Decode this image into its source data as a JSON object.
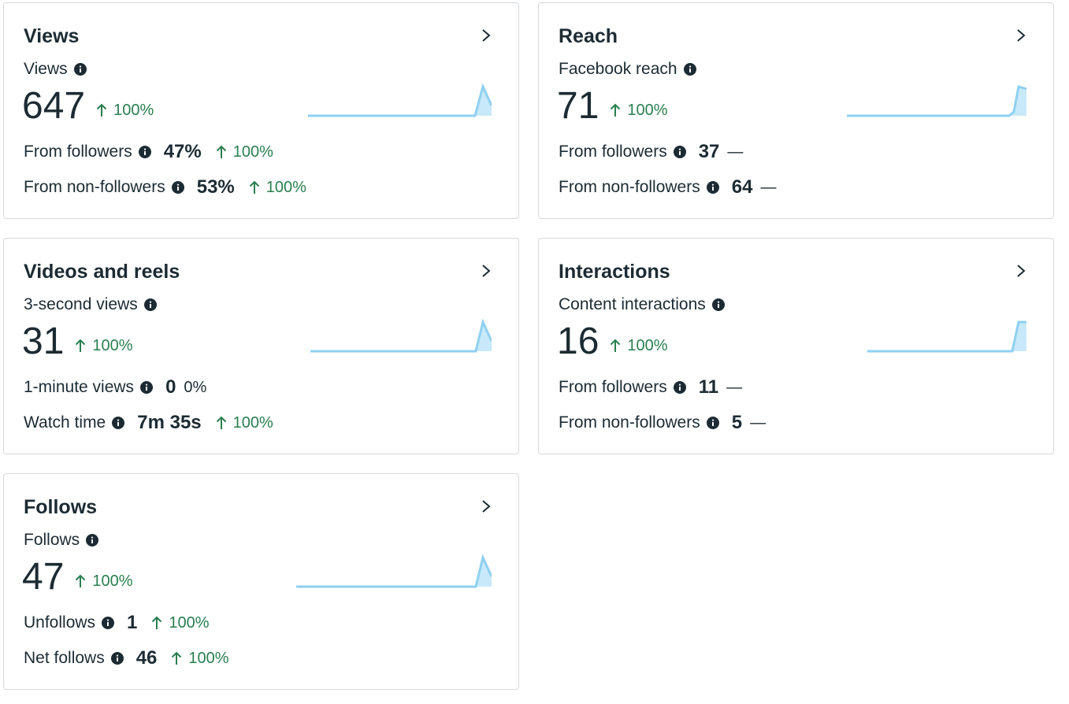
{
  "colors": {
    "positive": "#2a7e4f",
    "text": "#1c2b33",
    "sparkline": "#8fd0f0",
    "sparkline_fill": "#c8e9f9"
  },
  "cards": {
    "views": {
      "title": "Views",
      "metric_label": "Views",
      "value": "647",
      "change": "100%",
      "rows": [
        {
          "label": "From followers",
          "value": "47%",
          "change": "100%"
        },
        {
          "label": "From non-followers",
          "value": "53%",
          "change": "100%"
        }
      ]
    },
    "reach": {
      "title": "Reach",
      "metric_label": "Facebook reach",
      "value": "71",
      "change": "100%",
      "rows": [
        {
          "label": "From followers",
          "value": "37",
          "change": "—"
        },
        {
          "label": "From non-followers",
          "value": "64",
          "change": "—"
        }
      ]
    },
    "videos": {
      "title": "Videos and reels",
      "metric_label": "3-second views",
      "value": "31",
      "change": "100%",
      "rows": [
        {
          "label": "1-minute views",
          "value": "0",
          "change": "0%"
        },
        {
          "label": "Watch time",
          "value": "7m 35s",
          "change": "100%"
        }
      ]
    },
    "interactions": {
      "title": "Interactions",
      "metric_label": "Content interactions",
      "value": "16",
      "change": "100%",
      "rows": [
        {
          "label": "From followers",
          "value": "11",
          "change": "—"
        },
        {
          "label": "From non-followers",
          "value": "5",
          "change": "—"
        }
      ]
    },
    "follows": {
      "title": "Follows",
      "metric_label": "Follows",
      "value": "47",
      "change": "100%",
      "rows": [
        {
          "label": "Unfollows",
          "value": "1",
          "change": "100%"
        },
        {
          "label": "Net follows",
          "value": "46",
          "change": "100%"
        }
      ]
    }
  }
}
